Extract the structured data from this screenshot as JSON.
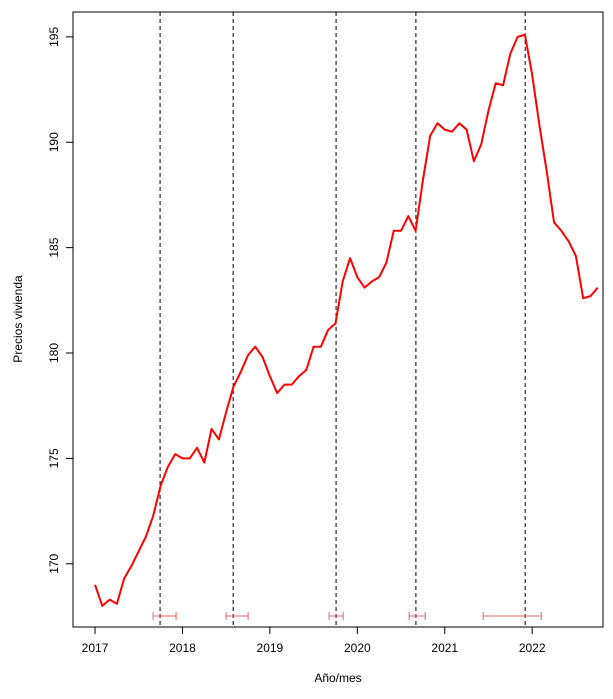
{
  "chart_data": {
    "type": "line",
    "xlabel": "Año/mes",
    "ylabel": "Precios vivienda",
    "x": [
      2017,
      2017.083,
      2017.167,
      2017.25,
      2017.333,
      2017.417,
      2017.5,
      2017.583,
      2017.667,
      2017.75,
      2017.833,
      2017.917,
      2018,
      2018.083,
      2018.167,
      2018.25,
      2018.333,
      2018.417,
      2018.5,
      2018.583,
      2018.667,
      2018.75,
      2018.833,
      2018.917,
      2019,
      2019.083,
      2019.167,
      2019.25,
      2019.333,
      2019.417,
      2019.5,
      2019.583,
      2019.667,
      2019.75,
      2019.833,
      2019.917,
      2020,
      2020.083,
      2020.167,
      2020.25,
      2020.333,
      2020.417,
      2020.5,
      2020.583,
      2020.667,
      2020.75,
      2020.833,
      2020.917,
      2021,
      2021.083,
      2021.167,
      2021.25,
      2021.333,
      2021.417,
      2021.5,
      2021.583,
      2021.667,
      2021.75,
      2021.833,
      2021.917,
      2022,
      2022.083,
      2022.167,
      2022.25,
      2022.333,
      2022.417,
      2022.5,
      2022.583,
      2022.667,
      2022.75
    ],
    "series": [
      {
        "color": "#ff0000",
        "values": [
          169.0,
          168.0,
          168.3,
          168.1,
          169.3,
          169.9,
          170.6,
          171.3,
          172.3,
          173.7,
          174.6,
          175.2,
          175.0,
          175.0,
          175.5,
          174.8,
          176.4,
          175.9,
          177.2,
          178.4,
          179.1,
          179.9,
          180.3,
          179.8,
          178.9,
          178.1,
          178.5,
          178.5,
          178.9,
          179.2,
          180.3,
          180.3,
          181.1,
          181.4,
          183.4,
          184.5,
          183.6,
          183.1,
          183.4,
          183.6,
          184.3,
          185.8,
          185.8,
          186.5,
          185.8,
          188.2,
          190.3,
          190.9,
          190.6,
          190.5,
          190.9,
          190.6,
          189.1,
          189.9,
          191.5,
          192.8,
          192.7,
          194.2,
          195.0,
          195.1,
          193.2,
          190.8,
          188.6,
          186.2,
          185.8,
          185.3,
          184.6,
          182.6,
          182.7,
          183.1
        ]
      }
    ],
    "breakpoints": [
      2017.744,
      2018.58,
      2019.757,
      2020.67,
      2021.92
    ],
    "confidence_intervals": [
      [
        2017.664,
        2017.927
      ],
      [
        2018.499,
        2018.751
      ],
      [
        2019.677,
        2019.838
      ],
      [
        2020.593,
        2020.776
      ],
      [
        2021.439,
        2022.103
      ]
    ],
    "ci_color": "#e06666",
    "xlim": [
      2016.748,
      2022.81
    ],
    "xticks": [
      2017,
      2018,
      2019,
      2020,
      2021,
      2022
    ],
    "ylim": [
      167.0,
      196.18
    ],
    "yticks": [
      170,
      175,
      180,
      185,
      190,
      195
    ]
  }
}
